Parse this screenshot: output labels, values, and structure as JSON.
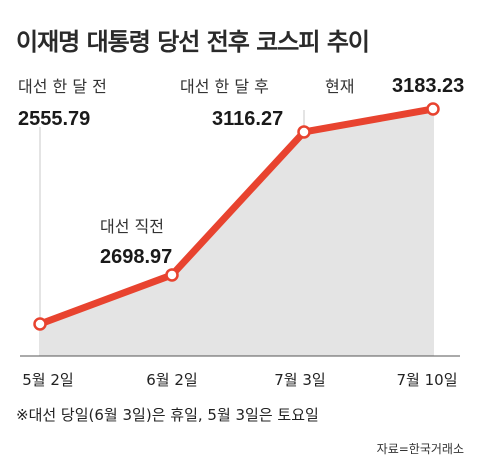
{
  "title": "이재명 대통령 당선 전후 코스피 추이",
  "chart_data": {
    "type": "area",
    "title": "이재명 대통령 당선 전후 코스피 추이",
    "categories": [
      "5월 2일",
      "6월 2일",
      "7월 3일",
      "7월 10일"
    ],
    "series": [
      {
        "values": [
          2555.79,
          2698.97,
          3116.27,
          3183.23
        ]
      }
    ],
    "annotations": [
      {
        "label": "대선 한 달 전",
        "value": "2555.79"
      },
      {
        "label": "대선 직전",
        "value": "2698.97"
      },
      {
        "label": "대선 한 달 후",
        "value": "3116.27"
      },
      {
        "label": "현재",
        "value": "3183.23"
      }
    ],
    "colors": {
      "line": "#e8432f",
      "area": "#e4e4e4",
      "marker_fill": "#ffffff"
    },
    "grid": false
  },
  "footnote": "※대선 당일(6월 3일)은 휴일, 5월 3일은 토요일",
  "source": "자료=한국거래소"
}
